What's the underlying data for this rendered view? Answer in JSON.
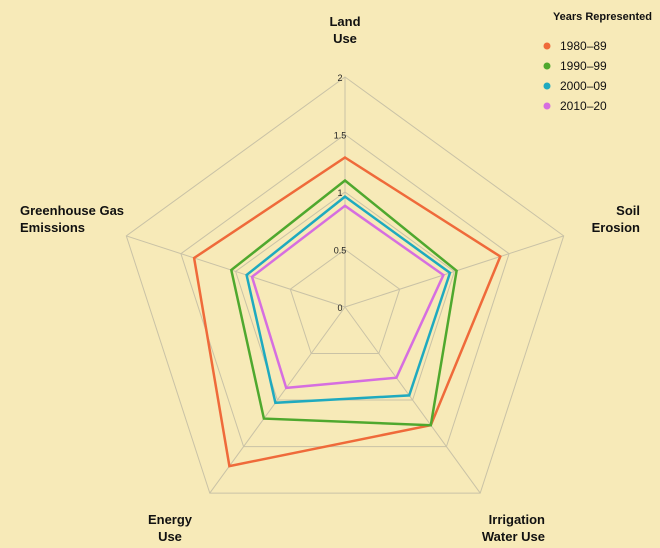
{
  "chart_data": {
    "type": "radar",
    "axes": [
      {
        "label_lines": [
          "Land",
          "Use"
        ]
      },
      {
        "label_lines": [
          "Soil",
          "Erosion"
        ]
      },
      {
        "label_lines": [
          "Irrigation",
          "Water Use"
        ]
      },
      {
        "label_lines": [
          "Energy",
          "Use"
        ]
      },
      {
        "label_lines": [
          "Greenhouse Gas",
          "Emissions"
        ]
      }
    ],
    "range": [
      0,
      2
    ],
    "rings": [
      0.5,
      1,
      1.5,
      2
    ],
    "tick_labels": [
      "0",
      "0.5",
      "1",
      "1.5",
      "2"
    ],
    "legend": {
      "title": "Years Represented",
      "placement": "top-right"
    },
    "series": [
      {
        "name": "1980–89",
        "color": "#ef6a3a",
        "values": [
          1.3,
          1.42,
          1.27,
          1.71,
          1.38
        ]
      },
      {
        "name": "1990–99",
        "color": "#4fa82e",
        "values": [
          1.1,
          1.02,
          1.27,
          1.2,
          1.04
        ]
      },
      {
        "name": "2000–09",
        "color": "#1faabf",
        "values": [
          0.96,
          0.96,
          0.95,
          1.03,
          0.9
        ]
      },
      {
        "name": "2010–20",
        "color": "#d66ee0",
        "values": [
          0.88,
          0.9,
          0.76,
          0.87,
          0.85
        ]
      }
    ]
  }
}
